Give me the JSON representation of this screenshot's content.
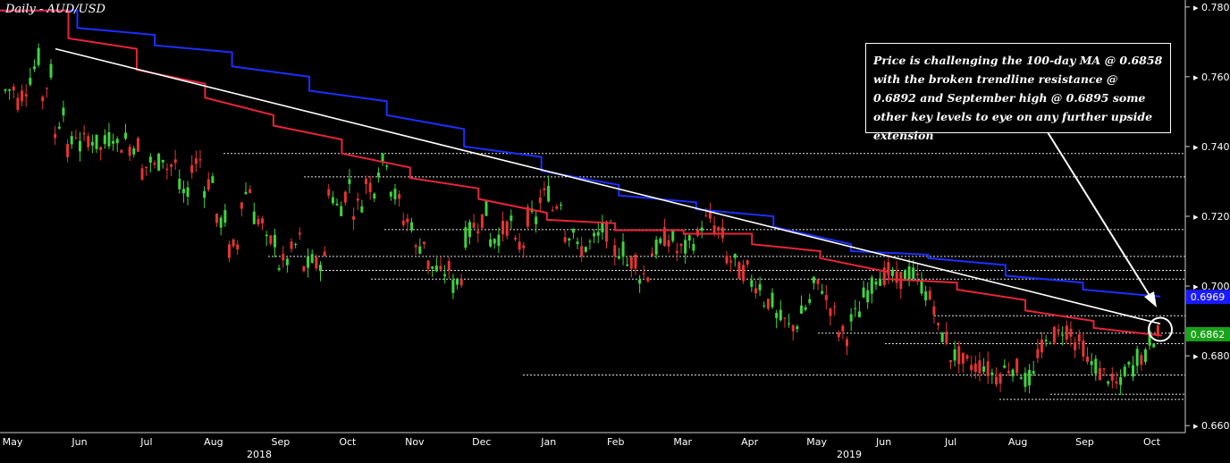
{
  "chart_data": {
    "type": "candlestick",
    "title": "Daily - AUD/USD",
    "annotation": "Price is challenging the 100-day MA @ 0.6858 with the broken trendline resistance @ 0.6892 and September high @ 0.6895 some other key levels to eye on any further upside extension",
    "y_ticks": [
      "0.7800",
      "0.7600",
      "0.7400",
      "0.7200",
      "0.7000",
      "0.6800",
      "0.6600"
    ],
    "ylim": [
      0.658,
      0.782
    ],
    "x_months": [
      "May",
      "Jun",
      "Jul",
      "Aug",
      "Sep",
      "Oct",
      "Nov",
      "Dec",
      "Jan",
      "Feb",
      "Mar",
      "Apr",
      "May",
      "Jun",
      "Jul",
      "Aug",
      "Sep",
      "Oct"
    ],
    "x_years": [
      "2018",
      "2019"
    ],
    "price_labels": [
      {
        "value": "0.6969",
        "price": 0.6969,
        "color": "#1a1aff"
      },
      {
        "value": "0.6862",
        "price": 0.6862,
        "color": "#19a319"
      }
    ],
    "close_series": [
      [
        0.756,
        0.757
      ],
      [
        0.753,
        0.759
      ],
      [
        0.76,
        0.768
      ],
      [
        0.754,
        0.765
      ],
      [
        0.743,
        0.756
      ],
      [
        0.738,
        0.747
      ],
      [
        0.74,
        0.744
      ],
      [
        0.742,
        0.738
      ],
      [
        0.741,
        0.745
      ],
      [
        0.74,
        0.743
      ],
      [
        0.74,
        0.741
      ],
      [
        0.733,
        0.737
      ],
      [
        0.734,
        0.739
      ],
      [
        0.734,
        0.736
      ],
      [
        0.728,
        0.724
      ],
      [
        0.735,
        0.737
      ],
      [
        0.728,
        0.733
      ],
      [
        0.718,
        0.72
      ],
      [
        0.71,
        0.713
      ],
      [
        0.725,
        0.73
      ],
      [
        0.72,
        0.717
      ],
      [
        0.712,
        0.714
      ],
      [
        0.706,
        0.708
      ],
      [
        0.71,
        0.715
      ],
      [
        0.705,
        0.708
      ],
      [
        0.706,
        0.709
      ],
      [
        0.728,
        0.72
      ],
      [
        0.723,
        0.733
      ],
      [
        0.722,
        0.725
      ],
      [
        0.73,
        0.727
      ],
      [
        0.734,
        0.738
      ],
      [
        0.728,
        0.722
      ],
      [
        0.719,
        0.718
      ],
      [
        0.71,
        0.715
      ],
      [
        0.706,
        0.704
      ],
      [
        0.703,
        0.706
      ],
      [
        0.7,
        0.704
      ],
      [
        0.714,
        0.719
      ],
      [
        0.718,
        0.723
      ],
      [
        0.713,
        0.715
      ],
      [
        0.716,
        0.72
      ],
      [
        0.711,
        0.713
      ],
      [
        0.72,
        0.718
      ],
      [
        0.725,
        0.728
      ],
      [
        0.722,
        0.727
      ],
      [
        0.715,
        0.717
      ],
      [
        0.71,
        0.712
      ],
      [
        0.712,
        0.715
      ],
      [
        0.716,
        0.715
      ],
      [
        0.71,
        0.711
      ],
      [
        0.706,
        0.709
      ],
      [
        0.703,
        0.704
      ],
      [
        0.71,
        0.712
      ],
      [
        0.714,
        0.713
      ],
      [
        0.71,
        0.711
      ],
      [
        0.712,
        0.715
      ],
      [
        0.718,
        0.72
      ],
      [
        0.717,
        0.713
      ],
      [
        0.708,
        0.706
      ],
      [
        0.704,
        0.705
      ],
      [
        0.701,
        0.7
      ],
      [
        0.696,
        0.695
      ],
      [
        0.691,
        0.689
      ],
      [
        0.688,
        0.69
      ],
      [
        0.692,
        0.697
      ],
      [
        0.7,
        0.7
      ],
      [
        0.696,
        0.69
      ],
      [
        0.687,
        0.685
      ],
      [
        0.69,
        0.694
      ],
      [
        0.697,
        0.701
      ],
      [
        0.703,
        0.703
      ],
      [
        0.704,
        0.7
      ],
      [
        0.702,
        0.705
      ],
      [
        0.703,
        0.699
      ],
      [
        0.698,
        0.693
      ],
      [
        0.687,
        0.684
      ],
      [
        0.68,
        0.68
      ],
      [
        0.678,
        0.677
      ],
      [
        0.677,
        0.678
      ],
      [
        0.676,
        0.673
      ],
      [
        0.675,
        0.678
      ],
      [
        0.677,
        0.675
      ],
      [
        0.673,
        0.674
      ],
      [
        0.681,
        0.684
      ],
      [
        0.686,
        0.686
      ],
      [
        0.688,
        0.687
      ],
      [
        0.684,
        0.682
      ],
      [
        0.678,
        0.677
      ],
      [
        0.675,
        0.674
      ],
      [
        0.672,
        0.671
      ],
      [
        0.676,
        0.677
      ],
      [
        0.68,
        0.679
      ],
      [
        0.685,
        0.6862
      ]
    ],
    "ma_200_blue": [
      [
        0.779,
        0.779
      ],
      [
        0.774,
        0.772
      ],
      [
        0.769,
        0.767
      ],
      [
        0.763,
        0.76
      ],
      [
        0.756,
        0.753
      ],
      [
        0.749,
        0.745
      ],
      [
        0.74,
        0.737
      ],
      [
        0.733,
        0.729
      ],
      [
        0.726,
        0.724
      ],
      [
        0.722,
        0.72
      ],
      [
        0.717,
        0.712
      ],
      [
        0.71,
        0.709
      ],
      [
        0.708,
        0.706
      ],
      [
        0.703,
        0.701
      ],
      [
        0.699,
        0.697
      ]
    ],
    "ma_100_red": [
      [
        0.779,
        0.779
      ],
      [
        0.771,
        0.768
      ],
      [
        0.762,
        0.758
      ],
      [
        0.754,
        0.749
      ],
      [
        0.746,
        0.742
      ],
      [
        0.738,
        0.734
      ],
      [
        0.731,
        0.728
      ],
      [
        0.725,
        0.721
      ],
      [
        0.719,
        0.718
      ],
      [
        0.716,
        0.716
      ],
      [
        0.715,
        0.715
      ],
      [
        0.712,
        0.71
      ],
      [
        0.708,
        0.704
      ],
      [
        0.702,
        0.701
      ],
      [
        0.699,
        0.696
      ],
      [
        0.693,
        0.69
      ],
      [
        0.688,
        0.6858
      ]
    ],
    "trendline": {
      "start": 0.768,
      "end": 0.6892
    },
    "support_resistance_lines": [
      0.738,
      0.7313,
      0.7162,
      0.7085,
      0.7045,
      0.702,
      0.6915,
      0.6865,
      0.6835,
      0.6745,
      0.669,
      0.6675
    ]
  }
}
